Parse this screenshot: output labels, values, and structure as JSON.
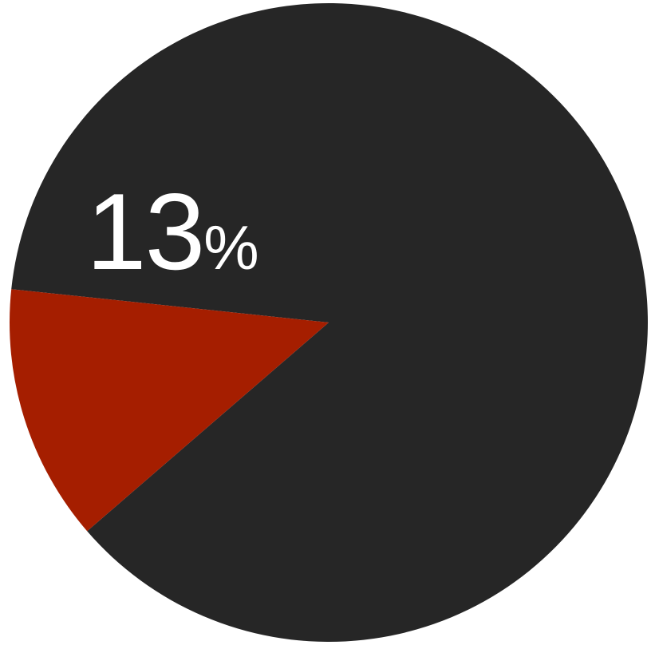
{
  "chart_data": {
    "type": "pie",
    "slices": [
      {
        "value": 87,
        "color": "#262626"
      },
      {
        "value": 13,
        "color": "#A51E00",
        "label": "13",
        "unit": "%"
      }
    ]
  }
}
